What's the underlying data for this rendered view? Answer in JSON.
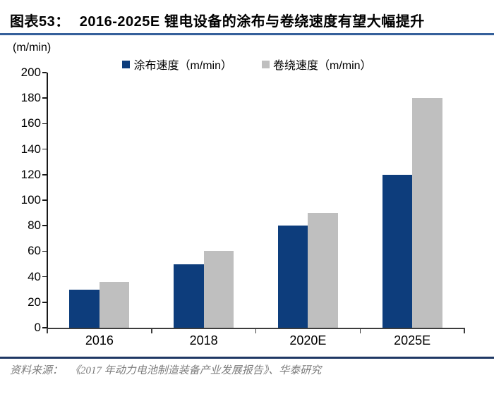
{
  "figure": {
    "label": "图表53：",
    "title": "2016-2025E 锂电设备的涂布与卷绕速度有望大幅提升",
    "unit_label": "(m/min)",
    "source_prefix": "资料来源：",
    "source_text": "《2017 年动力电池制造装备产业发展报告》、华泰研究"
  },
  "colors": {
    "series_coating": "#0d3d7c",
    "series_winding": "#bfbfbf",
    "title_rule": "#35609b",
    "footer_rule": "#1f3864",
    "axis": "#3d3d3d",
    "source_text": "#7d7d7d"
  },
  "chart_data": {
    "type": "bar",
    "title": "2016-2025E 锂电设备的涂布与卷绕速度有望大幅提升",
    "categories": [
      "2016",
      "2018",
      "2020E",
      "2025E"
    ],
    "series": [
      {
        "name": "涂布速度（m/min）",
        "values": [
          30,
          50,
          80,
          120
        ],
        "color": "#0d3d7c"
      },
      {
        "name": "卷绕速度（m/min）",
        "values": [
          36,
          60,
          90,
          180
        ],
        "color": "#bfbfbf"
      }
    ],
    "xlabel": "",
    "ylabel": "(m/min)",
    "ylim": [
      0,
      200
    ],
    "y_ticks": [
      0,
      20,
      40,
      60,
      80,
      100,
      120,
      140,
      160,
      180,
      200
    ],
    "grid": false,
    "legend_position": "top"
  }
}
